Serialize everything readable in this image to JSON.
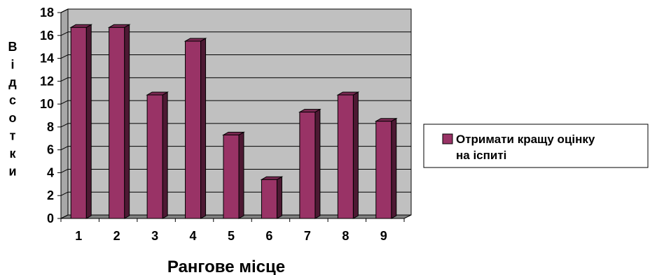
{
  "chart_data": {
    "type": "bar",
    "categories": [
      "1",
      "2",
      "3",
      "4",
      "5",
      "6",
      "7",
      "8",
      "9"
    ],
    "series": [
      {
        "name": "Отримати кращу оцінку на іспиті",
        "values": [
          16.7,
          16.7,
          10.8,
          15.5,
          7.3,
          3.4,
          9.3,
          10.8,
          8.5
        ]
      }
    ],
    "xlabel": "Рангове місце",
    "ylabel_letters": [
      "В",
      "і",
      "д",
      "с",
      "о",
      "т",
      "к",
      "и"
    ],
    "legend_lines": [
      "Отримати кращу оцінку",
      "на іспиті"
    ],
    "yticks": [
      "0",
      "2",
      "4",
      "6",
      "8",
      "10",
      "12",
      "14",
      "16",
      "18"
    ],
    "ylim": [
      0,
      18
    ],
    "grid": true,
    "legend_position": "right",
    "colors": {
      "plot_bg": "#c0c0c0",
      "bar_front": "#993366",
      "bar_side": "#4d1933",
      "bar_top": "#7a2952",
      "grid": "#000000"
    }
  }
}
